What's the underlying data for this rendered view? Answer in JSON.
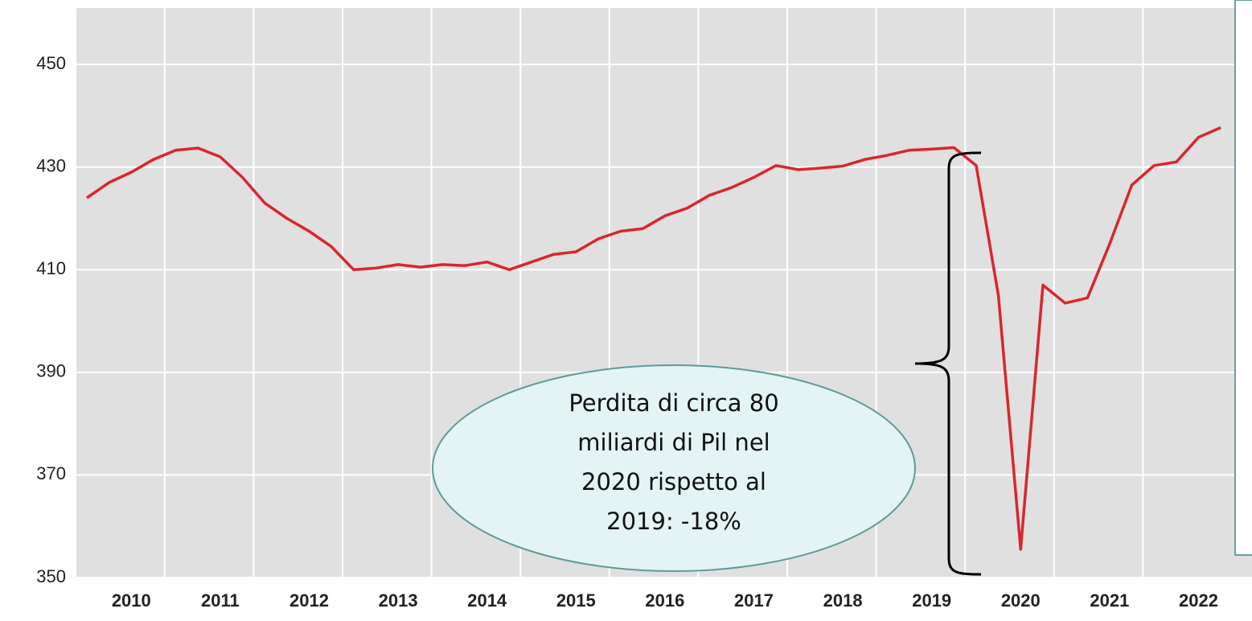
{
  "chart_data": {
    "type": "line",
    "categories": [
      null,
      null,
      "2010",
      null,
      null,
      null,
      "2011",
      null,
      null,
      null,
      "2012",
      null,
      null,
      null,
      "2013",
      null,
      null,
      null,
      "2014",
      null,
      null,
      null,
      "2015",
      null,
      null,
      null,
      "2016",
      null,
      null,
      null,
      "2017",
      null,
      null,
      null,
      "2018",
      null,
      null,
      null,
      "2019",
      null,
      null,
      null,
      "2020",
      null,
      null,
      null,
      "2021",
      null,
      null,
      null,
      "2022",
      null
    ],
    "values": [
      424,
      427,
      429,
      431.5,
      433.3,
      433.7,
      432,
      428,
      423,
      420,
      417.5,
      414.5,
      410,
      410.3,
      411,
      410.5,
      411,
      410.8,
      411.5,
      410,
      411.5,
      413,
      413.5,
      416,
      417.5,
      418,
      420.5,
      422,
      424.5,
      426,
      428,
      430.3,
      429.5,
      429.8,
      430.2,
      431.5,
      432.3,
      433.3,
      433.5,
      433.8,
      430.3,
      405,
      355.5,
      407,
      403.5,
      404.5,
      415,
      426.5,
      430.3,
      431,
      435.8,
      437.7
    ],
    "color": "#d9262e",
    "ylim": [
      350,
      461
    ],
    "yticks": [
      350,
      370,
      390,
      410,
      430,
      450
    ],
    "grid": true,
    "annotation": [
      "Perdita di circa 80",
      "miliardi di Pil nel",
      "2020 rispetto al",
      "2019: -18%"
    ]
  }
}
